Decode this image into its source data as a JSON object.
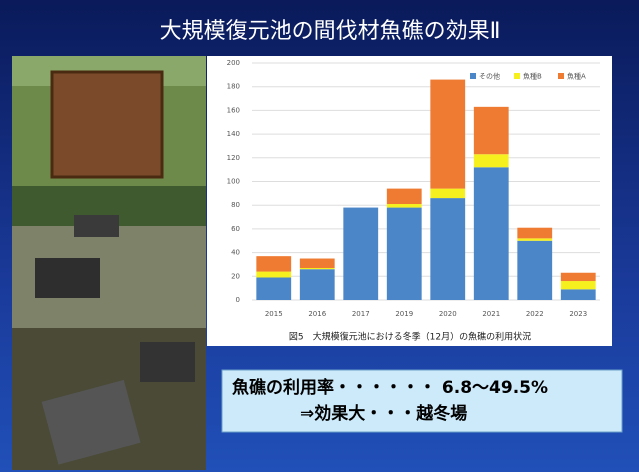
{
  "slide": {
    "title": "大規模復元池の間伐材魚礁の効果Ⅱ",
    "note_lines": [
      "魚礁の利用率・・・・・・ 6.8～49.5%",
      "⇒効果大・・・越冬場"
    ]
  },
  "chart_data": {
    "type": "stacked-bar",
    "title": "図5　大規模復元池における冬季（12月）の魚礁の利用状況",
    "categories": [
      "2015",
      "2016",
      "2017",
      "2019",
      "2020",
      "2021",
      "2022",
      "2023"
    ],
    "series": [
      {
        "name": "その他",
        "color": "#4a86c8",
        "values": [
          19,
          26,
          78,
          78,
          86,
          112,
          50,
          9
        ]
      },
      {
        "name": "魚種B",
        "color": "#f5f01e",
        "values": [
          5,
          1,
          0,
          3,
          8,
          11,
          2,
          7
        ]
      },
      {
        "name": "魚種A",
        "color": "#ef7b32",
        "values": [
          13,
          8,
          0,
          13,
          92,
          40,
          9,
          7
        ]
      }
    ],
    "ylim": [
      0,
      200
    ],
    "yticks": [
      0,
      20,
      40,
      60,
      80,
      100,
      120,
      140,
      160,
      180,
      200
    ],
    "grid": true,
    "legend": "top-right"
  }
}
